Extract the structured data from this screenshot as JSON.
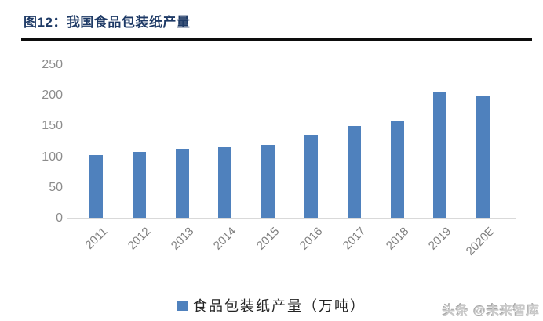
{
  "header": {
    "title": "图12：我国食品包装纸产量"
  },
  "chart_data": {
    "type": "bar",
    "title": "我国食品包装纸产量",
    "categories": [
      "2011",
      "2012",
      "2013",
      "2014",
      "2015",
      "2016",
      "2017",
      "2018",
      "2019",
      "2020E"
    ],
    "values": [
      103,
      109,
      113,
      116,
      120,
      136,
      151,
      160,
      205,
      200
    ],
    "series_name": "食品包装纸产量（万吨）",
    "xlabel": "",
    "ylabel": "",
    "ylim": [
      0,
      250
    ],
    "yticks": [
      0,
      50,
      100,
      150,
      200,
      250
    ],
    "grid": false,
    "legend_position": "bottom",
    "bar_color": "#4f81bd",
    "axis_label_color": "#7f7f7f",
    "axis_line_color": "#d9d9d9"
  },
  "legend": {
    "label": "食品包装纸产量（万吨）",
    "swatch_color": "#4f81bd"
  },
  "footer": {
    "watermark": "头条 @未来智库"
  }
}
